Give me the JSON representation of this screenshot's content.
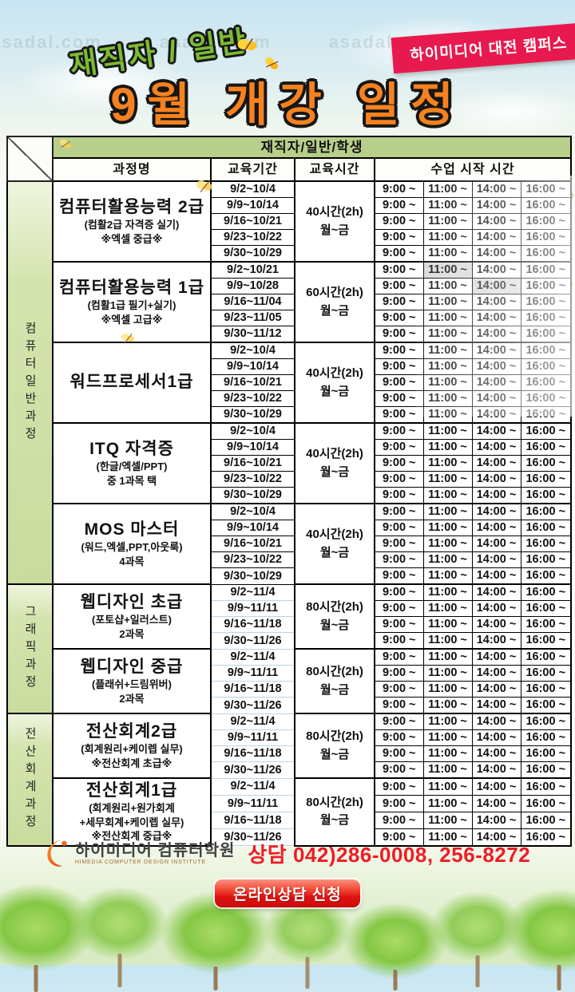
{
  "header": {
    "audience": "재직자 / 일반",
    "title": "9월 개강 일정",
    "campus_badge": "하이미디어 대전 캠퍼스"
  },
  "watermark": "asadal.com",
  "table": {
    "group_header": "재직자/일반/학생",
    "columns": {
      "course": "과정명",
      "period": "교육기간",
      "hours": "교육시간",
      "start_times": "수업 시작 시간"
    },
    "times": [
      "9:00 ~",
      "11:00 ~",
      "14:00 ~",
      "16:00 ~"
    ],
    "categories": [
      {
        "label": "컴퓨터일반과정",
        "course_indexes": [
          0,
          1,
          2,
          3,
          4
        ]
      },
      {
        "label": "그래픽과정",
        "course_indexes": [
          5,
          6
        ]
      },
      {
        "label": "전산회계과정",
        "course_indexes": [
          7,
          8
        ]
      }
    ],
    "courses": [
      {
        "name": "컴퓨터활용능력 2급",
        "subs": [
          "(컴활2급 자격증 실기)",
          "※엑셀 중급※"
        ],
        "hours": [
          "40시간(2h)",
          "월~금"
        ],
        "periods": [
          "9/2~10/4",
          "9/9~10/14",
          "9/16~10/21",
          "9/23~10/22",
          "9/30~10/29"
        ],
        "highlights": []
      },
      {
        "name": "컴퓨터활용능력 1급",
        "subs": [
          "(컴활1급 필기+실기)",
          "※엑셀 고급※"
        ],
        "hours": [
          "60시간(2h)",
          "월~금"
        ],
        "periods": [
          "9/2~10/21",
          "9/9~10/28",
          "9/16~11/04",
          "9/23~11/05",
          "9/30~11/12"
        ],
        "highlights": [
          [
            0,
            1
          ],
          [
            1,
            2
          ]
        ]
      },
      {
        "name": "워드프로세서1급",
        "subs": [],
        "hours": [
          "40시간(2h)",
          "월~금"
        ],
        "periods": [
          "9/2~10/4",
          "9/9~10/14",
          "9/16~10/21",
          "9/23~10/22",
          "9/30~10/29"
        ],
        "highlights": []
      },
      {
        "name": "ITQ 자격증",
        "subs": [
          "(한글/엑셀/PPT)",
          "중 1과목 택"
        ],
        "hours": [
          "40시간(2h)",
          "월~금"
        ],
        "periods": [
          "9/2~10/4",
          "9/9~10/14",
          "9/16~10/21",
          "9/23~10/22",
          "9/30~10/29"
        ],
        "highlights": []
      },
      {
        "name": "MOS 마스터",
        "subs": [
          "(워드,엑셀,PPT,아웃룩)",
          "4과목"
        ],
        "hours": [
          "40시간(2h)",
          "월~금"
        ],
        "periods": [
          "9/2~10/4",
          "9/9~10/14",
          "9/16~10/21",
          "9/23~10/22",
          "9/30~10/29"
        ],
        "highlights": []
      },
      {
        "name": "웹디자인 초급",
        "subs": [
          "(포토샵+일러스트)",
          "2과목"
        ],
        "hours": [
          "80시간(2h)",
          "월~금"
        ],
        "periods": [
          "9/2~11/4",
          "9/9~11/11",
          "9/16~11/18",
          "9/30~11/26"
        ],
        "highlights": []
      },
      {
        "name": "웹디자인 중급",
        "subs": [
          "(플래쉬+드림위버)",
          "2과목"
        ],
        "hours": [
          "80시간(2h)",
          "월~금"
        ],
        "periods": [
          "9/2~11/4",
          "9/9~11/11",
          "9/16~11/18",
          "9/30~11/26"
        ],
        "highlights": []
      },
      {
        "name": "전산회계2급",
        "subs": [
          "(회계원리+케이렙 실무)",
          "※전산회계 초급※"
        ],
        "hours": [
          "80시간(2h)",
          "월~금"
        ],
        "periods": [
          "9/2~11/4",
          "9/9~11/11",
          "9/16~11/18",
          "9/30~11/26"
        ],
        "highlights": []
      },
      {
        "name": "전산회계1급",
        "subs": [
          "(회계원리+원가회계",
          "+세무회계+케이렙 실무)",
          "※전산회계 중급※"
        ],
        "hours": [
          "80시간(2h)",
          "월~금"
        ],
        "periods": [
          "9/2~11/4",
          "9/9~11/11",
          "9/16~11/18",
          "9/30~11/26"
        ],
        "highlights": []
      }
    ]
  },
  "footer": {
    "logo_name": "하이미디어 컴퓨터학원",
    "logo_subtitle": "HIMEDIA COMPUTER DESIGN INSTITUTE",
    "consult_text": "상담 042)286-0008, 256-8272",
    "online_button": "온라인상담 신청"
  },
  "colors": {
    "title_orange": "#f6821f",
    "audience_green": "#7cbb33",
    "badge_red": "#e8194e",
    "group_header_green": "#b7cf8a",
    "category_strip_green": "#cfe0a8",
    "highlight_gray": "#d9d9d9",
    "phone_red": "#ee1c25",
    "button_red": "#e01212"
  }
}
